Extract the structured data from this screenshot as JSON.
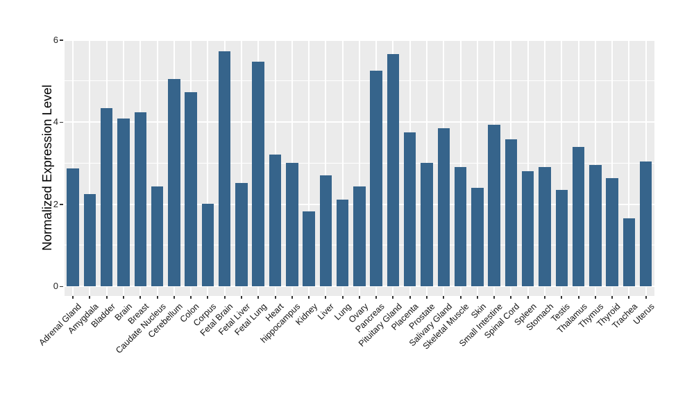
{
  "chart_data": {
    "type": "bar",
    "title": "",
    "xlabel": "",
    "ylabel": "Normalized Expression Level",
    "categories": [
      "Adrenal Gland",
      "Amygdala",
      "Bladder",
      "Brain",
      "Breast",
      "Caudate Nucleus",
      "Cerebellum",
      "Colon",
      "Corpus",
      "Fetal Brain",
      "Fetal Liver",
      "Fetal Lung",
      "Heart",
      "hippocampus",
      "Kidney",
      "Liver",
      "Lung",
      "Ovary",
      "Pancreas",
      "Pituitary Gland",
      "Placenta",
      "Prostate",
      "Salivary Gland",
      "Skeletal Muscle",
      "Skin",
      "Small Intestine",
      "Spinal Cord",
      "Spleen",
      "Stomach",
      "Testis",
      "Thalamus",
      "Thymus",
      "Thyroid",
      "Trachea",
      "Uterus"
    ],
    "values": [
      2.88,
      2.25,
      4.34,
      4.09,
      4.25,
      2.43,
      5.05,
      4.74,
      2.01,
      5.73,
      2.52,
      5.47,
      3.21,
      3.01,
      1.83,
      2.7,
      2.12,
      2.44,
      5.26,
      5.67,
      3.76,
      3.01,
      3.85,
      2.9,
      2.4,
      3.93,
      3.59,
      2.81,
      2.91,
      2.35,
      3.39,
      2.96,
      2.64,
      1.65,
      3.04
    ],
    "ylim": [
      0,
      6
    ],
    "yticks": [
      0,
      2,
      4,
      6
    ],
    "yticks_minor": [
      1,
      3,
      5
    ],
    "grid": "on",
    "legend": "none",
    "tick_label_rotation": 45,
    "colors": {
      "bar": "#36648B",
      "panel_bg": "#EBEBEB",
      "grid": "#FFFFFF",
      "tick": "#333333"
    }
  }
}
